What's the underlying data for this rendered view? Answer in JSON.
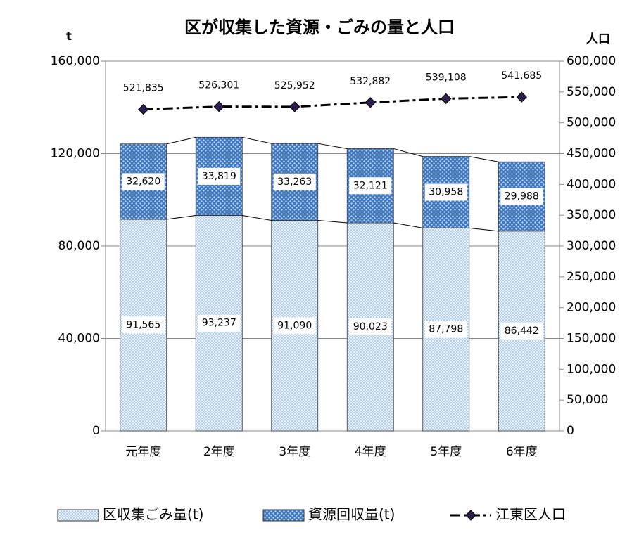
{
  "chart_data": {
    "type": "bar-line",
    "title": "区が収集した資源・ごみの量と人口",
    "y_label": "t",
    "y2_label": "人口",
    "categories": [
      "元年度",
      "2年度",
      "3年度",
      "4年度",
      "5年度",
      "6年度"
    ],
    "stacked": true,
    "series": [
      {
        "name": "区収集ごみ量(t)",
        "type": "bar",
        "color": "#9dc3e6",
        "values": [
          91565,
          93237,
          91090,
          90023,
          87798,
          86442
        ],
        "value_labels": [
          "91,565",
          "93,237",
          "91,090",
          "90,023",
          "87,798",
          "86,442"
        ]
      },
      {
        "name": "資源回収量(t)",
        "type": "bar",
        "color": "#4f81bd",
        "values": [
          32620,
          33819,
          33263,
          32121,
          30958,
          29988
        ],
        "value_labels": [
          "32,620",
          "33,819",
          "33,263",
          "32,121",
          "30,958",
          "29,988"
        ]
      },
      {
        "name": "江東区人口",
        "type": "line",
        "axis": "y2",
        "color": "#2e1f4f",
        "values": [
          521835,
          526301,
          525952,
          532882,
          539108,
          541685
        ],
        "value_labels": [
          "521,835",
          "526,301",
          "525,952",
          "532,882",
          "539,108",
          "541,685"
        ]
      }
    ],
    "ylim": [
      0,
      160000
    ],
    "yticks": [
      0,
      {
        "value": 40000,
        "label": "40,000"
      },
      {
        "value": 80000,
        "label": "80,000"
      },
      {
        "value": 120000,
        "label": "120,000"
      },
      {
        "value": 160000,
        "label": "160,000"
      }
    ],
    "y2lim": [
      0,
      600000
    ],
    "y2ticks": [
      0,
      {
        "value": 50000,
        "label": "50,000"
      },
      {
        "value": 100000,
        "label": "100,000"
      },
      {
        "value": 150000,
        "label": "150,000"
      },
      {
        "value": 200000,
        "label": "200,000"
      },
      {
        "value": 250000,
        "label": "250,000"
      },
      {
        "value": 300000,
        "label": "300,000"
      },
      {
        "value": 350000,
        "label": "350,000"
      },
      {
        "value": 400000,
        "label": "400,000"
      },
      {
        "value": 450000,
        "label": "450,000"
      },
      {
        "value": 500000,
        "label": "500,000"
      },
      {
        "value": 550000,
        "label": "550,000"
      },
      {
        "value": 600000,
        "label": "600,000"
      }
    ],
    "grid": true,
    "legend": "bottom"
  }
}
